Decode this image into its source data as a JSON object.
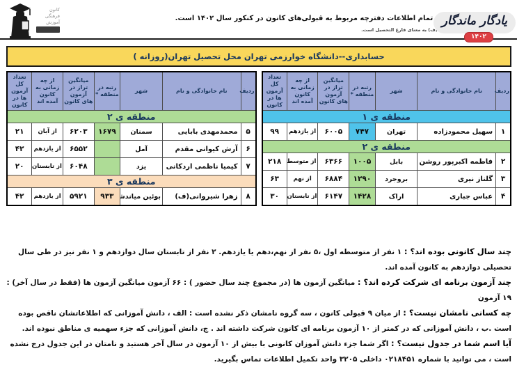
{
  "header": {
    "note": "توجه: تمام اطلاعات دفترچه مربوط به قبولی‌های کانون در کنکور سال  ۱۴۰۲  است.",
    "subnote": "* حرف (ف) به معنای فارغ التحصیل است.",
    "brand": "یادگار ماندگار",
    "brand_year": "۱۴۰۲",
    "logo_lines": [
      "کانون",
      "فرهنگی",
      "آموزش"
    ]
  },
  "title": "حسابداری--دانشگاه خوارزمی تهران محل تحصیل تهران(روزانه )",
  "table": {
    "columns": [
      "ردیف",
      "نام خانوادگی و نام",
      "شهر",
      "رتبه در منطقه *",
      "میانگین تراز در آزمون های کانون",
      "از چه زمانی به کانون آمده اند",
      "تعداد کل آزمون ها در کانون"
    ],
    "panels": [
      {
        "side": "right",
        "sections": [
          {
            "label": "منطقه ی ۱",
            "region": "r1",
            "rows": [
              [
                "۱",
                "سهیل محمودزاده",
                "تهران",
                "۷۴۷",
                "۶۰۰۵",
                "از یازدهم",
                "۹۹"
              ]
            ]
          },
          {
            "label": "منطقه ی ۲",
            "region": "r2",
            "rows": [
              [
                "۲",
                "فاطمه اکبرپور روشن",
                "بابل",
                "۱۰۰۵",
                "۶۳۶۶",
                "از متوسطه اول",
                "۲۱۸"
              ],
              [
                "۳",
                "گلناز نیری",
                "بروجرد",
                "۱۲۹۰",
                "۶۸۸۴",
                "از نهم",
                "۶۳"
              ],
              [
                "۴",
                "عباس جباری",
                "اراک",
                "۱۴۲۸",
                "۶۱۴۷",
                "از تابستان",
                "۳۰"
              ]
            ]
          }
        ]
      },
      {
        "side": "left",
        "sections": [
          {
            "label": "منطقه ی ۲",
            "region": "r2",
            "rows": [
              [
                "۵",
                "محمدمهدی بابایی",
                "سمنان",
                "۱۶۷۹",
                "۶۲۰۳",
                "از آبان",
                "۲۱"
              ],
              [
                "۶",
                "آرش کیوانی مقدم",
                "آمل",
                "",
                "۶۵۵۲",
                "از یازدهم",
                "۴۲"
              ],
              [
                "۷",
                "کیمیا ناظمی اردکانی",
                "یزد",
                "",
                "۶۰۴۸",
                "از تابستان",
                "۲۰"
              ]
            ]
          },
          {
            "label": "منطقه ی ۳",
            "region": "r3",
            "rows": [
              [
                "۸",
                "زهرا شیروانی(ف)",
                "بوئین میاندشت",
                "۹۳۳",
                "۵۹۲۱",
                "از یازدهم",
                "۴۲"
              ]
            ]
          }
        ]
      }
    ]
  },
  "faq": [
    {
      "q": "چند سال کانونی بوده اند؟ :",
      "a": "۱ نفر از متوسطه اول ،۵ نفر از نهم،دهم یا یازدهم. ۲ نفر از تابستان سال دوازدهم و ۱ نفر نیز در طی سال تحصیلی دوازدهم به کانون آمده اند."
    },
    {
      "q": "چند آزمون برنامه ای شرکت کرده اند؟ :",
      "a": "میانگین آزمون ها (در مجموع چند سال حضور ) : ۶۶ آزمون      میانگین آزمون ها (فقط در سال آخر) : ۱۹ آزمون"
    },
    {
      "q": "چه کسانی نامشان نیست؟ :",
      "a": "از میان ۹ قبولی کانون ، سه گروه نامشان ذکر نشده است : الف ، دانش آموزانی که اطلاعاتشان ناقص بوده است .ب ، دانش آموزانی که در کمتر از ۱۰ آزمون برنامه ای کانون شرکت داشته اند . ج، دانش آموزانی که جزء سهمیه ی مناطق نبوده اند."
    },
    {
      "q": "آیا اسم شما در جدول نیست؟ :",
      "a": "اگر شما جزء دانش آموزان کانونی با بیش از ۱۰ آزمون در سال آخر هستید و نامتان در این جدول درج نشده است ، می توانید با شماره ۰۲۱۸۴۵۱ داخلی ۳۲۰۵ واحد تکمیل اطلاعات تماس بگیرید."
    }
  ],
  "colors": {
    "title_yellow": "#f9d75b",
    "header_blue": "#9faad8",
    "region1_cyan": "#4fc3ea",
    "region2_green": "#aedc96",
    "region3_peach": "#fbdcbb",
    "badge_red": "#dd3f43",
    "heading_navy": "#17365d"
  }
}
